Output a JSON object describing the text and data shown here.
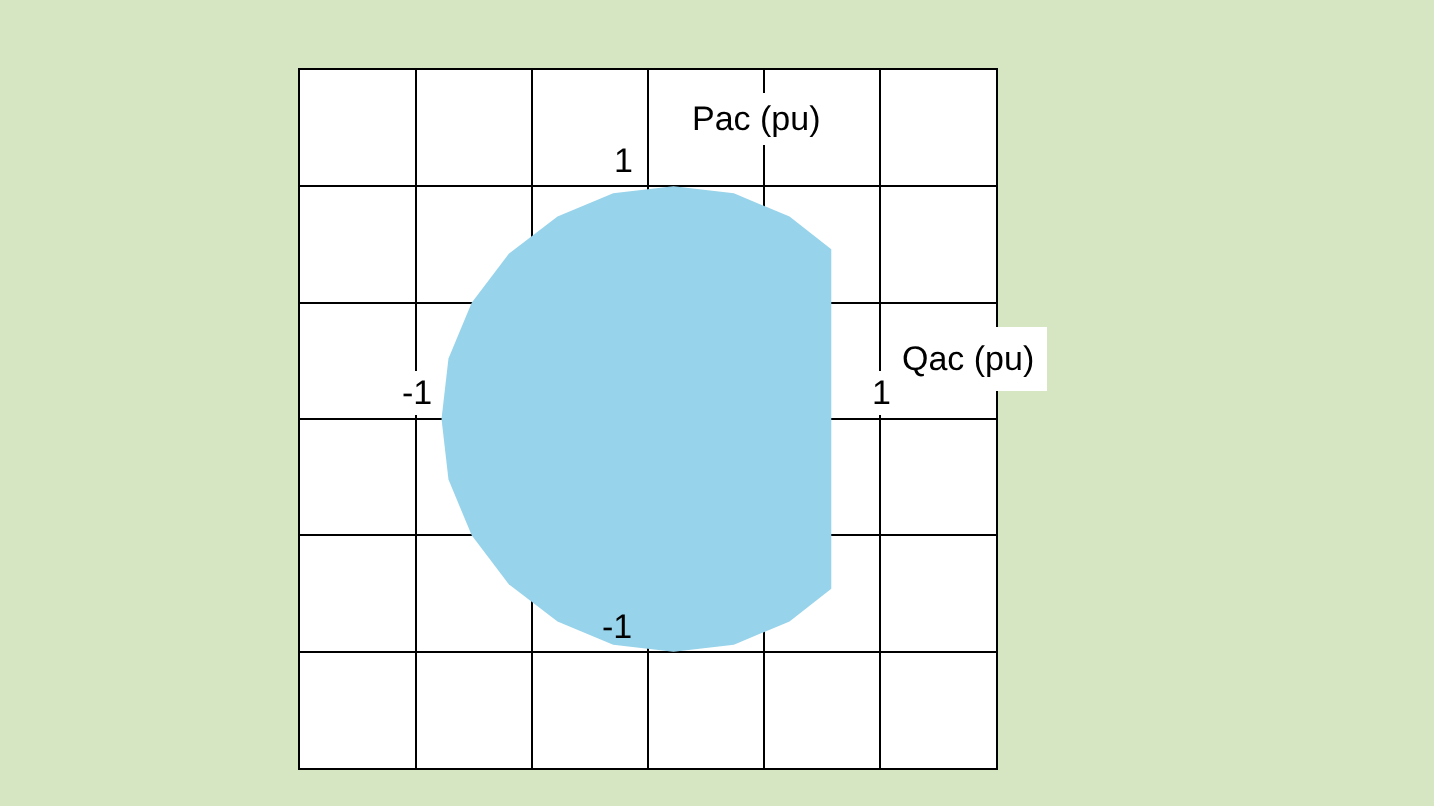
{
  "chart_data": {
    "type": "area",
    "xlabel": "Qac (pu)",
    "ylabel": "Pac (pu)",
    "series": [
      {
        "color": "#97d3ea",
        "x": [
          -0.89,
          -0.86,
          -0.76,
          -0.6,
          -0.39,
          -0.15,
          0.11,
          0.37,
          0.61,
          0.79
        ],
        "values": [
          0,
          0.26,
          0.5,
          0.71,
          0.87,
          0.97,
          1.0,
          0.97,
          0.87,
          0.73
        ]
      },
      {
        "color": "#97d3ea",
        "x": [
          -0.89,
          -0.86,
          -0.76,
          -0.6,
          -0.39,
          -0.15,
          0.11,
          0.37,
          0.61,
          0.79
        ],
        "values": [
          0,
          -0.26,
          -0.5,
          -0.71,
          -0.87,
          -0.97,
          -1.0,
          -0.97,
          -0.87,
          -0.73
        ]
      }
    ],
    "xlim": [
      -1.5,
      1.5
    ],
    "ylim": [
      -1.5,
      1.5
    ],
    "xticks": [
      {
        "value": -1.5,
        "label": null
      },
      {
        "value": -1,
        "label": "-1"
      },
      {
        "value": -0.5,
        "label": null
      },
      {
        "value": 0,
        "label": null
      },
      {
        "value": 0.5,
        "label": null
      },
      {
        "value": 1,
        "label": "1"
      },
      {
        "value": 1.5,
        "label": null
      }
    ],
    "yticks": [
      {
        "value": -1.5,
        "label": null
      },
      {
        "value": -1,
        "label": "-1"
      },
      {
        "value": -0.5,
        "label": null
      },
      {
        "value": 0,
        "label": null
      },
      {
        "value": 0.5,
        "label": null
      },
      {
        "value": 1,
        "label": "1"
      },
      {
        "value": 1.5,
        "label": null
      }
    ],
    "grid": true
  }
}
